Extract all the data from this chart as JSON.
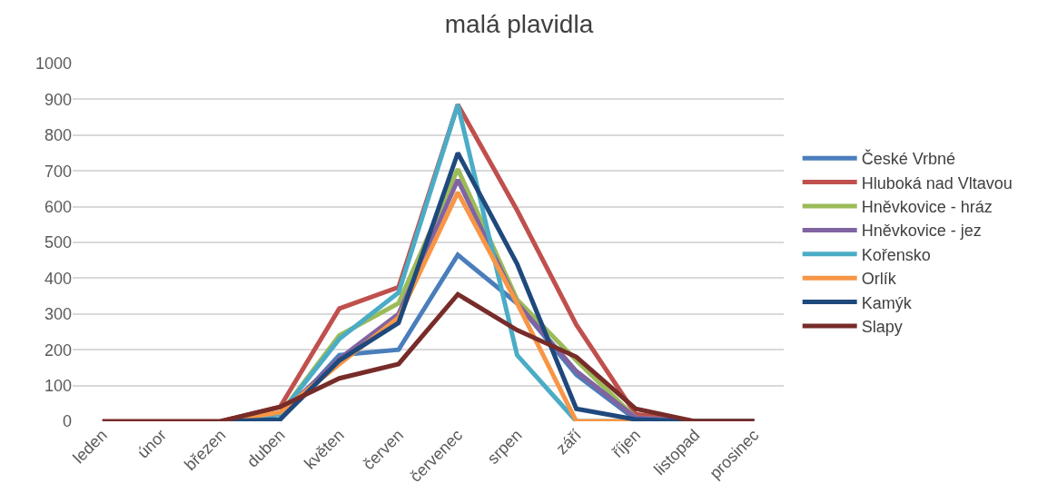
{
  "chart_data": {
    "type": "line",
    "title": "malá plavidla",
    "categories": [
      "leden",
      "únor",
      "březen",
      "duben",
      "květen",
      "červen",
      "červenec",
      "srpen",
      "září",
      "říjen",
      "listopad",
      "prosinec"
    ],
    "series": [
      {
        "name": "České Vrbné",
        "color": "#4a7ebb",
        "values": [
          null,
          null,
          0,
          5,
          185,
          200,
          465,
          330,
          130,
          5,
          0,
          0
        ]
      },
      {
        "name": "Hluboká nad Vltavou",
        "color": "#c0504d",
        "values": [
          null,
          null,
          0,
          40,
          315,
          375,
          885,
          590,
          270,
          20,
          0,
          0
        ]
      },
      {
        "name": "Hněvkovice - hráz",
        "color": "#9bbb59",
        "values": [
          null,
          null,
          0,
          20,
          240,
          330,
          705,
          340,
          170,
          10,
          0,
          0
        ]
      },
      {
        "name": "Hněvkovice - jez",
        "color": "#8064a2",
        "values": [
          null,
          null,
          0,
          20,
          175,
          300,
          675,
          330,
          140,
          10,
          0,
          0
        ]
      },
      {
        "name": "Kořensko",
        "color": "#4bacc6",
        "values": [
          null,
          null,
          0,
          20,
          230,
          360,
          885,
          185,
          0,
          0,
          0,
          0
        ]
      },
      {
        "name": "Orlík",
        "color": "#f79646",
        "values": [
          null,
          null,
          0,
          25,
          160,
          290,
          640,
          330,
          0,
          0,
          0,
          0
        ]
      },
      {
        "name": "Kamýk",
        "color": "#1f497d",
        "values": [
          null,
          null,
          0,
          5,
          170,
          275,
          750,
          440,
          35,
          5,
          0,
          0
        ]
      },
      {
        "name": "Slapy",
        "color": "#772c2a",
        "values": [
          0,
          0,
          0,
          40,
          120,
          160,
          355,
          255,
          180,
          35,
          0,
          0
        ]
      }
    ],
    "ylim": [
      0,
      1000
    ],
    "yticks": [
      0,
      100,
      200,
      300,
      400,
      500,
      600,
      700,
      800,
      900,
      1000
    ],
    "grid": "y",
    "legend": "right",
    "marker": "none",
    "line_style": "solid"
  }
}
